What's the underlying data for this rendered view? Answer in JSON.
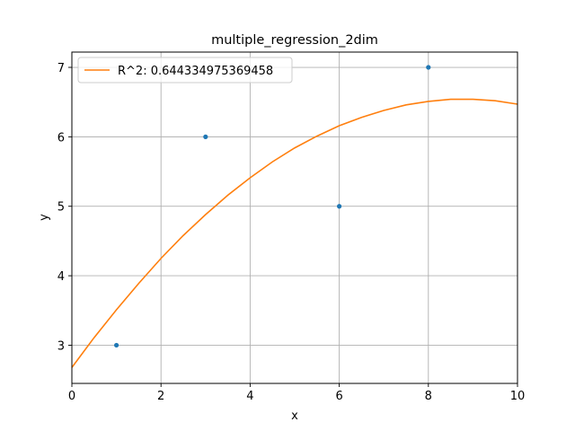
{
  "chart_data": {
    "type": "scatter",
    "title": "multiple_regression_2dim",
    "xlabel": "x",
    "ylabel": "y",
    "xlim": [
      0,
      10
    ],
    "ylim": [
      2.45,
      7.22
    ],
    "xticks": [
      0,
      2,
      4,
      6,
      8,
      10
    ],
    "yticks": [
      3,
      4,
      5,
      6,
      7
    ],
    "grid": true,
    "legend_position": "upper-left",
    "series": [
      {
        "kind": "points",
        "color": "#1f77b4",
        "x": [
          1,
          3,
          6,
          8
        ],
        "y": [
          3,
          6,
          5,
          7
        ]
      },
      {
        "kind": "fit-curve",
        "name": "R^2: 0.644334975369458",
        "color": "#ff7f0e",
        "x": [
          0,
          0.5,
          1,
          1.5,
          2,
          2.5,
          3,
          3.5,
          4,
          4.5,
          5,
          5.5,
          6,
          6.5,
          7,
          7.5,
          8,
          8.5,
          9,
          9.5,
          10
        ],
        "y": [
          2.68,
          3.11,
          3.51,
          3.89,
          4.25,
          4.58,
          4.88,
          5.16,
          5.41,
          5.64,
          5.84,
          6.01,
          6.16,
          6.28,
          6.38,
          6.46,
          6.51,
          6.54,
          6.54,
          6.52,
          6.47
        ]
      }
    ]
  }
}
